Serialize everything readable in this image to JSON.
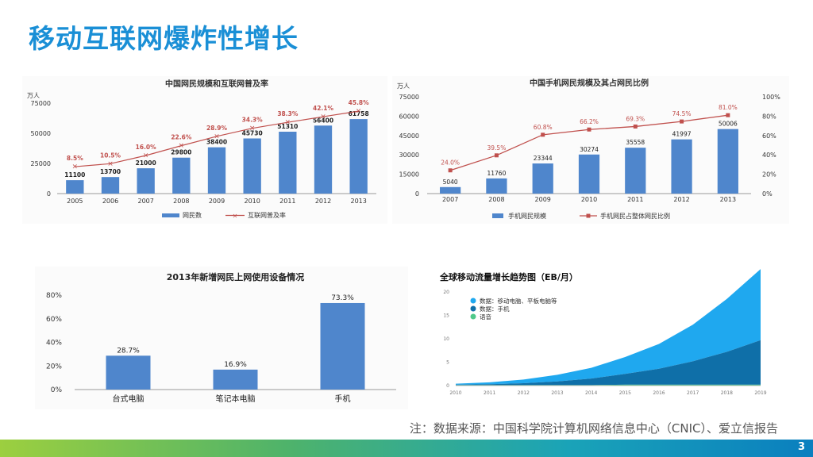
{
  "slide": {
    "title": "移动互联网爆炸性增长",
    "note": "注：数据来源：中国科学院计算机网络信息中心（CNIC）、爱立信报告",
    "page_number": "3",
    "colors": {
      "title": "#1a8fd6",
      "bar": "#4f86cc",
      "line": "#c0504d"
    }
  },
  "chart_data": [
    {
      "type": "bar",
      "title": "中国网民规模和互联网普及率",
      "ylabel": "万人",
      "categories": [
        "2005",
        "2006",
        "2007",
        "2008",
        "2009",
        "2010",
        "2011",
        "2012",
        "2013"
      ],
      "yticks": [
        "0",
        "25000",
        "50000",
        "75000"
      ],
      "ylim": [
        0,
        75000
      ],
      "series": [
        {
          "name": "网民数",
          "type": "bar",
          "values": [
            11100,
            13700,
            21000,
            29800,
            38400,
            45730,
            51310,
            56400,
            61758
          ]
        },
        {
          "name": "互联网普及率",
          "type": "line",
          "values": [
            8.5,
            10.5,
            16.0,
            22.6,
            28.9,
            34.3,
            38.3,
            42.1,
            45.8
          ],
          "labels": [
            "8.5%",
            "10.5%",
            "16.0%",
            "22.6%",
            "28.9%",
            "34.3%",
            "38.3%",
            "42.1%",
            "45.8%"
          ]
        }
      ],
      "legend": "bottom"
    },
    {
      "type": "bar",
      "title": "中国手机网民规模及其占网民比例",
      "ylabel": "万人",
      "categories": [
        "2007",
        "2008",
        "2009",
        "2010",
        "2011",
        "2012",
        "2013"
      ],
      "yticks": [
        "0",
        "15000",
        "30000",
        "45000",
        "60000",
        "75000"
      ],
      "yticks_right": [
        "0%",
        "20%",
        "40%",
        "60%",
        "80%",
        "100%"
      ],
      "ylim": [
        0,
        75000
      ],
      "ylim_right": [
        0,
        100
      ],
      "series": [
        {
          "name": "手机网民规模",
          "type": "bar",
          "values": [
            5040,
            11760,
            23344,
            30274,
            35558,
            41997,
            50006
          ]
        },
        {
          "name": "手机网民占整体网民比例",
          "type": "line",
          "values": [
            24.0,
            39.5,
            60.8,
            66.2,
            69.3,
            74.5,
            81.0
          ],
          "labels": [
            "24.0%",
            "39.5%",
            "60.8%",
            "66.2%",
            "69.3%",
            "74.5%",
            "81.0%"
          ]
        }
      ],
      "legend": "bottom"
    },
    {
      "type": "bar",
      "title": "2013年新增网民上网使用设备情况",
      "categories": [
        "台式电脑",
        "笔记本电脑",
        "手机"
      ],
      "values": [
        28.7,
        16.9,
        73.3
      ],
      "labels": [
        "28.7%",
        "16.9%",
        "73.3%"
      ],
      "yticks": [
        "0%",
        "20%",
        "40%",
        "60%",
        "80%"
      ],
      "ylim": [
        0,
        80
      ]
    },
    {
      "type": "area",
      "title": "全球移动流量增长趋势图（EB/月）",
      "x": [
        "2010",
        "2011",
        "2012",
        "2013",
        "2014",
        "2015",
        "2016",
        "2017",
        "2018",
        "2019"
      ],
      "yticks": [
        "0",
        "5",
        "10",
        "15",
        "20"
      ],
      "ylim": [
        0,
        20
      ],
      "series": [
        {
          "name": "数据：移动电脑、平板电脑等",
          "values": [
            0.2,
            0.4,
            0.8,
            1.4,
            2.3,
            3.6,
            5.3,
            7.8,
            11.3,
            15.2
          ],
          "color": "#1fa8ef"
        },
        {
          "name": "数据：手机",
          "values": [
            0.1,
            0.2,
            0.4,
            0.8,
            1.4,
            2.3,
            3.4,
            5.0,
            7.0,
            9.5
          ],
          "color": "#0f6fa8"
        },
        {
          "name": "语音",
          "values": [
            0.1,
            0.1,
            0.1,
            0.1,
            0.1,
            0.2,
            0.2,
            0.2,
            0.2,
            0.2
          ],
          "color": "#4fc98a"
        }
      ],
      "legend": "top-left"
    }
  ]
}
